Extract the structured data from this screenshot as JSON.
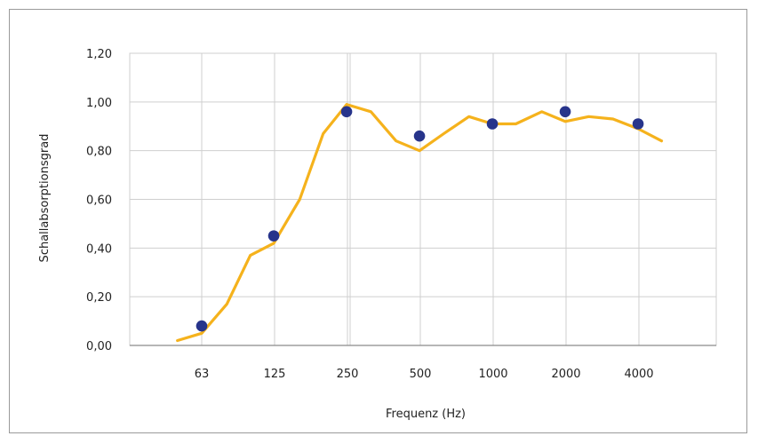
{
  "chart_data": {
    "type": "line",
    "xlabel": "Frequenz (Hz)",
    "ylabel": "Schallabsorptionsgrad",
    "categories": [
      "63",
      "125",
      "250",
      "500",
      "1000",
      "2000",
      "4000"
    ],
    "x_scale": "log2",
    "ylim": [
      0,
      1.2
    ],
    "ytick_labels": [
      "0,00",
      "0,20",
      "0,40",
      "0,60",
      "0,80",
      "1,00",
      "1,20"
    ],
    "grid": true,
    "series": [
      {
        "style": "line",
        "color": "#f5b21c",
        "x": [
          50,
          63,
          80,
          100,
          125,
          160,
          200,
          250,
          315,
          400,
          500,
          630,
          800,
          1000,
          1250,
          1600,
          2000,
          2500,
          3150,
          4000,
          5000
        ],
        "values": [
          0.02,
          0.05,
          0.17,
          0.37,
          0.42,
          0.6,
          0.87,
          0.99,
          0.96,
          0.84,
          0.8,
          0.87,
          0.94,
          0.91,
          0.91,
          0.96,
          0.92,
          0.94,
          0.93,
          0.89,
          0.84
        ]
      },
      {
        "style": "points",
        "color": "#27348b",
        "x": [
          63,
          125,
          250,
          500,
          1000,
          2000,
          4000
        ],
        "values": [
          0.08,
          0.45,
          0.96,
          0.86,
          0.91,
          0.96,
          0.91
        ]
      }
    ]
  }
}
